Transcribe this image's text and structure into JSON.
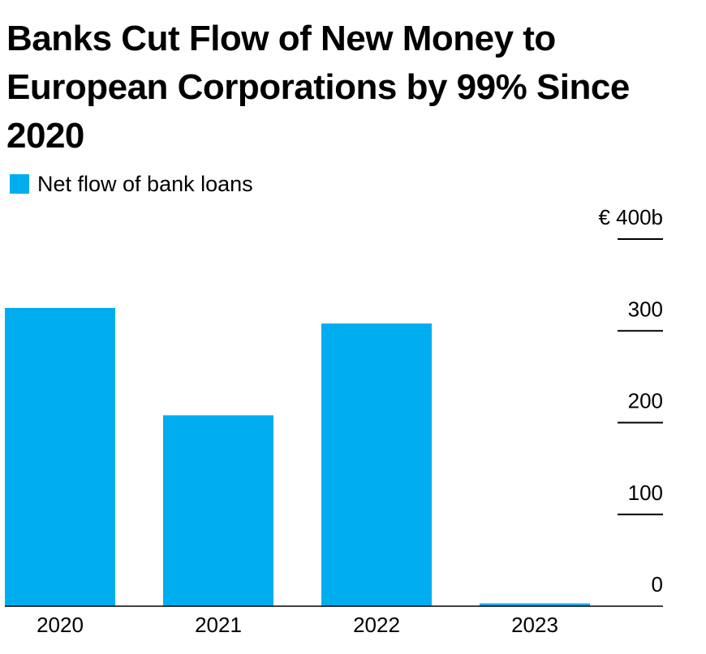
{
  "chart_data": {
    "type": "bar",
    "title": "Banks Cut Flow of New Money to European Corporations by 99% Since 2020",
    "legend": {
      "position": "top-left",
      "entries": [
        "Net flow of bank loans"
      ]
    },
    "categories": [
      "2020",
      "2021",
      "2022",
      "2023"
    ],
    "series": [
      {
        "name": "Net flow of bank loans",
        "values": [
          325,
          208,
          308,
          3
        ],
        "color": "#00aeef"
      }
    ],
    "y_axis": {
      "position": "right",
      "ylim": [
        0,
        400
      ],
      "ticks": [
        0,
        100,
        200,
        300,
        400
      ],
      "tick_labels": [
        "0",
        "100",
        "200",
        "300",
        "€ 400b"
      ]
    },
    "grid": false,
    "xlabel": "",
    "ylabel": ""
  }
}
